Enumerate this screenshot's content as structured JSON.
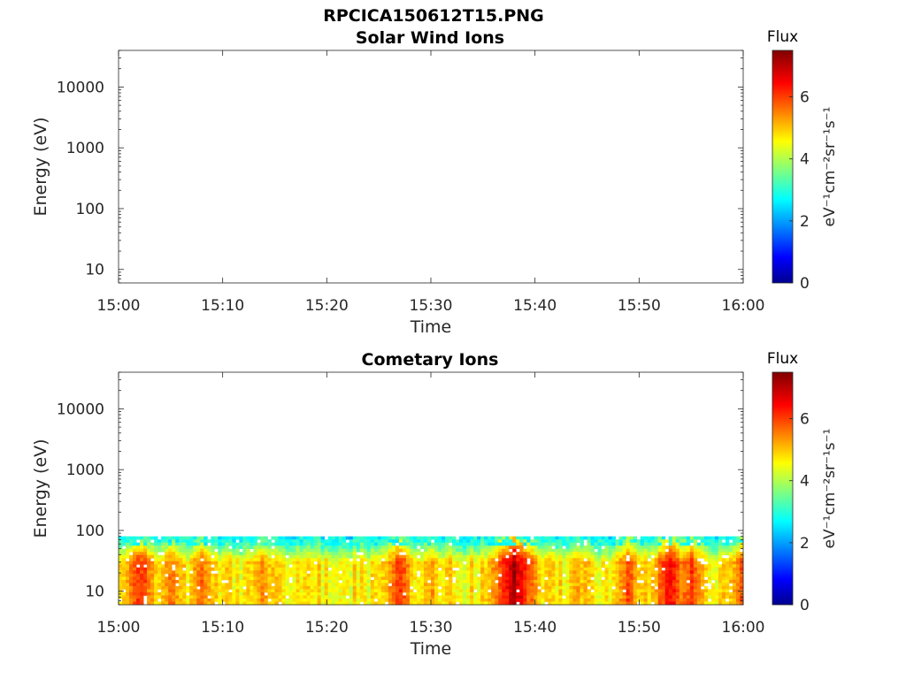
{
  "figure": {
    "title": "RPCICA150612T15.PNG"
  },
  "chart_data": [
    {
      "type": "heatmap",
      "title": "Solar Wind Ions",
      "xlabel": "Time",
      "ylabel": "Energy (eV)",
      "x_tick_labels": [
        "15:00",
        "15:10",
        "15:20",
        "15:30",
        "15:40",
        "15:50",
        "16:00"
      ],
      "y_tick_labels": [
        "10",
        "100",
        "1000",
        "10000"
      ],
      "y_scale": "log",
      "ylim": [
        6,
        40000
      ],
      "xlim": [
        "15:00",
        "16:00"
      ],
      "colorbar": {
        "label": "Flux",
        "units": "eV⁻¹cm⁻²sr⁻¹s⁻¹",
        "ticks": [
          "0",
          "2",
          "4",
          "6"
        ],
        "range": [
          0,
          7.5
        ],
        "colormap": "jet"
      },
      "data": "empty"
    },
    {
      "type": "heatmap",
      "title": "Cometary Ions",
      "xlabel": "Time",
      "ylabel": "Energy (eV)",
      "x_tick_labels": [
        "15:00",
        "15:10",
        "15:20",
        "15:30",
        "15:40",
        "15:50",
        "16:00"
      ],
      "y_tick_labels": [
        "10",
        "100",
        "1000",
        "10000"
      ],
      "y_scale": "log",
      "ylim": [
        6,
        40000
      ],
      "xlim": [
        "15:00",
        "16:00"
      ],
      "colorbar": {
        "label": "Flux",
        "units": "eV⁻¹cm⁻²sr⁻¹s⁻¹",
        "ticks": [
          "0",
          "2",
          "4",
          "6"
        ],
        "range": [
          0,
          7.5
        ],
        "colormap": "jet"
      },
      "energy_range_eV": [
        6,
        80
      ],
      "flux_typical": 4.8,
      "bright_bursts": [
        {
          "time": "15:02",
          "flux": 6.4
        },
        {
          "time": "15:05",
          "flux": 5.8
        },
        {
          "time": "15:08",
          "flux": 5.9
        },
        {
          "time": "15:14",
          "flux": 5.6
        },
        {
          "time": "15:27",
          "flux": 6.2
        },
        {
          "time": "15:30",
          "flux": 5.6
        },
        {
          "time": "15:37",
          "flux": 6.3
        },
        {
          "time": "15:38",
          "flux": 7.2
        },
        {
          "time": "15:44",
          "flux": 5.5
        },
        {
          "time": "15:49",
          "flux": 6.1
        },
        {
          "time": "15:53",
          "flux": 6.6
        },
        {
          "time": "15:55",
          "flux": 6.2
        },
        {
          "time": "16:00",
          "flux": 6.1
        }
      ]
    }
  ]
}
